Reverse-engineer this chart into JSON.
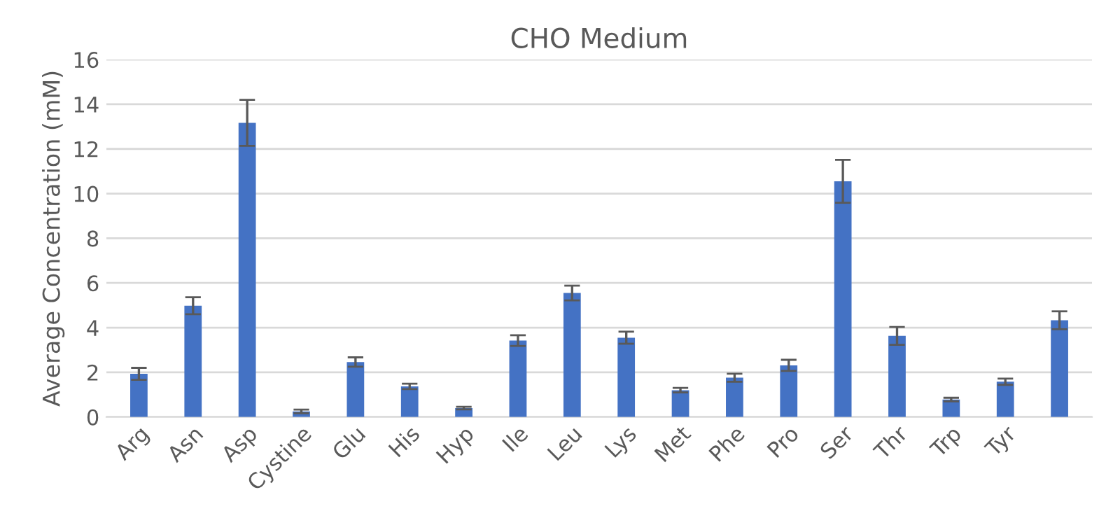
{
  "chart_data": {
    "type": "bar",
    "title": "CHO Medium",
    "ylabel": "Average Concentration (mM)",
    "categories": [
      "Arg",
      "Asn",
      "Asp",
      "Cystine",
      "Glu",
      "His",
      "Hyp",
      "Ile",
      "Leu",
      "Lys",
      "Met",
      "Phe",
      "Pro",
      "Ser",
      "Thr",
      "Trp",
      "Tyr",
      null
    ],
    "values": [
      1.93,
      4.98,
      13.17,
      0.25,
      2.46,
      1.37,
      0.4,
      3.42,
      5.55,
      3.55,
      1.2,
      1.76,
      2.31,
      10.55,
      3.63,
      0.78,
      1.58,
      4.33
    ],
    "errors": [
      0.27,
      0.38,
      1.03,
      0.08,
      0.21,
      0.12,
      0.06,
      0.24,
      0.33,
      0.27,
      0.1,
      0.18,
      0.25,
      0.96,
      0.4,
      0.08,
      0.14,
      0.4
    ],
    "color": "#4472c4",
    "ylim": [
      0,
      16
    ],
    "yticks": [
      0,
      2,
      4,
      6,
      8,
      10,
      12,
      14,
      16
    ],
    "grid": "y"
  }
}
